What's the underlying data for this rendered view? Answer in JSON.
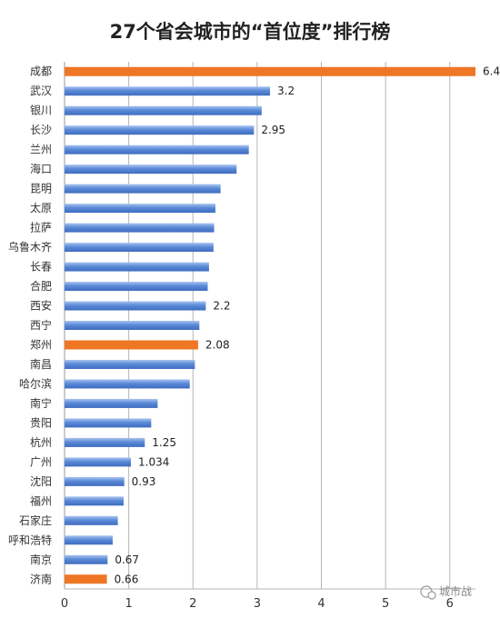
{
  "chart_data": {
    "type": "bar",
    "orientation": "horizontal",
    "title": "27个省会城市的“首位度”排行榜",
    "categories": [
      "成都",
      "武汉",
      "银川",
      "长沙",
      "兰州",
      "海口",
      "昆明",
      "太原",
      "拉萨",
      "乌鲁木齐",
      "长春",
      "合肥",
      "西安",
      "西宁",
      "郑州",
      "南昌",
      "哈尔滨",
      "南宁",
      "贵阳",
      "杭州",
      "广州",
      "沈阳",
      "福州",
      "石家庄",
      "呼和浩特",
      "南京",
      "济南"
    ],
    "values": [
      6.4,
      3.2,
      3.07,
      2.95,
      2.87,
      2.68,
      2.43,
      2.35,
      2.33,
      2.32,
      2.25,
      2.23,
      2.2,
      2.1,
      2.08,
      2.03,
      1.95,
      1.45,
      1.35,
      1.25,
      1.034,
      0.93,
      0.92,
      0.83,
      0.75,
      0.67,
      0.66
    ],
    "data_labels": [
      "6.4",
      "3.2",
      "",
      "2.95",
      "",
      "",
      "",
      "",
      "",
      "",
      "",
      "",
      "2.2",
      "",
      "2.08",
      "",
      "",
      "",
      "",
      "1.25",
      "1.034",
      "0.93",
      "",
      "",
      "",
      "0.67",
      "0.66"
    ],
    "highlighted": [
      "成都",
      "郑州",
      "济南"
    ],
    "xlim": [
      0,
      6.4
    ],
    "xticks": [
      "0",
      "1",
      "2",
      "3",
      "4",
      "5",
      "6"
    ],
    "grid": true,
    "legend": "none",
    "colors": {
      "default": "#5b8ad8",
      "highlight": "#ee7624"
    }
  },
  "watermark": "城市战"
}
